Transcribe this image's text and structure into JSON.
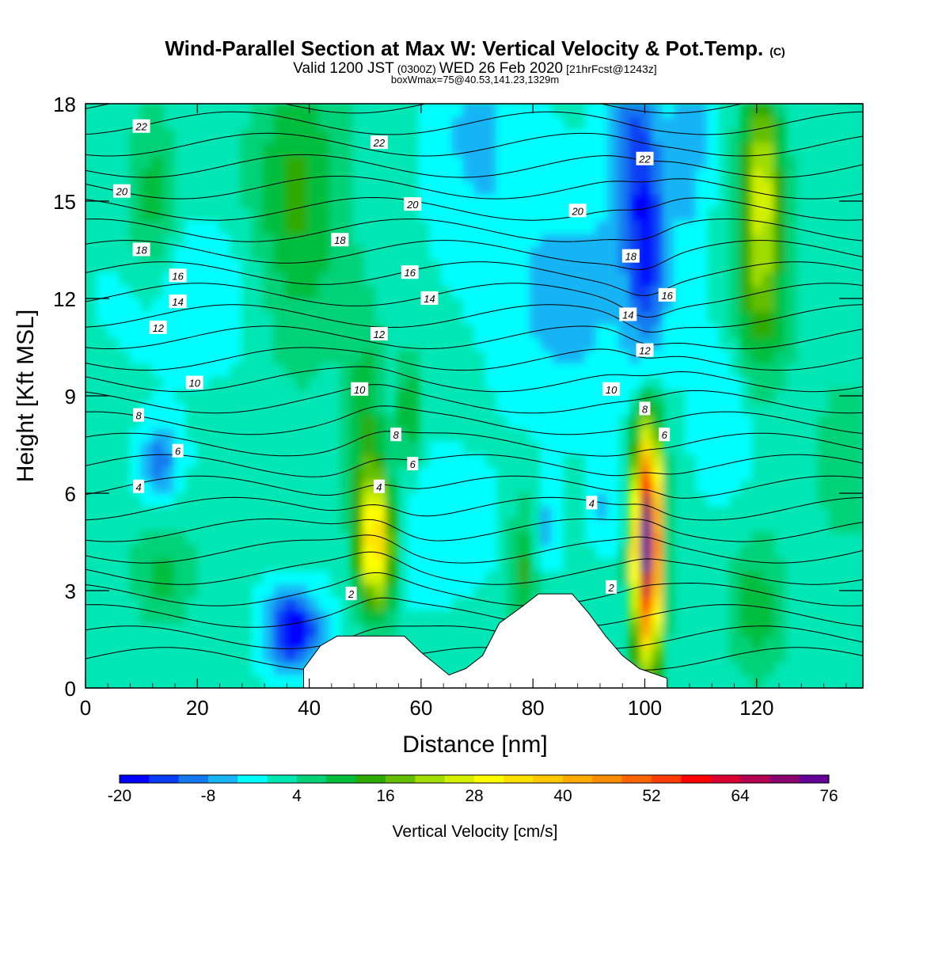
{
  "title": {
    "main": "Wind-Parallel Section at Max W: Vertical Velocity & Pot.Temp.",
    "copyright": "(C)",
    "valid_prefix": "Valid 1200 JST",
    "valid_utc": "(0300Z)",
    "valid_date": "WED 26 Feb 2020",
    "forecast": "[21hrFcst@1243z]",
    "boxwmax": "boxWmax=75@40.53,141.23,1329m"
  },
  "chart_data": {
    "type": "heatmap",
    "xlabel": "Distance [nm]",
    "ylabel": "Height [Kft MSL]",
    "xlim": [
      0,
      139
    ],
    "ylim": [
      0,
      18
    ],
    "x_ticks": [
      0,
      20,
      40,
      60,
      80,
      100,
      120
    ],
    "y_ticks": [
      0,
      3,
      6,
      9,
      12,
      15,
      18
    ],
    "colorbar": {
      "label": "Vertical Velocity [cm/s]",
      "min": -20,
      "max": 76,
      "step": 4,
      "tick_values": [
        -20,
        -8,
        4,
        16,
        28,
        40,
        52,
        64,
        76
      ],
      "colors": [
        "#0000ff",
        "#0a3cf5",
        "#1478f0",
        "#19b4f5",
        "#00ffff",
        "#00e6b4",
        "#00d278",
        "#00be3c",
        "#2daa00",
        "#64be00",
        "#a0dc00",
        "#d2f000",
        "#ffff00",
        "#ffe100",
        "#ffc800",
        "#ffaa00",
        "#ff8c00",
        "#ff6400",
        "#ff3c00",
        "#ff0000",
        "#dc0032",
        "#b40050",
        "#8c006e",
        "#640096"
      ]
    },
    "theta_contours": {
      "levels": [
        2,
        4,
        6,
        8,
        10,
        12,
        14,
        16,
        18,
        20,
        22
      ],
      "labels": [
        {
          "text": "22",
          "x": 10,
          "y": 17.3
        },
        {
          "text": "22",
          "x": 52.5,
          "y": 16.8
        },
        {
          "text": "22",
          "x": 100,
          "y": 16.3
        },
        {
          "text": "20",
          "x": 6.5,
          "y": 15.3
        },
        {
          "text": "20",
          "x": 58.5,
          "y": 14.9
        },
        {
          "text": "20",
          "x": 88,
          "y": 14.7
        },
        {
          "text": "18",
          "x": 10,
          "y": 13.5
        },
        {
          "text": "18",
          "x": 45.5,
          "y": 13.8
        },
        {
          "text": "18",
          "x": 97.5,
          "y": 13.3
        },
        {
          "text": "16",
          "x": 16.5,
          "y": 12.7
        },
        {
          "text": "16",
          "x": 58,
          "y": 12.8
        },
        {
          "text": "16",
          "x": 104,
          "y": 12.1
        },
        {
          "text": "14",
          "x": 16.5,
          "y": 11.9
        },
        {
          "text": "14",
          "x": 61.5,
          "y": 12.0
        },
        {
          "text": "14",
          "x": 97,
          "y": 11.5
        },
        {
          "text": "12",
          "x": 13,
          "y": 11.1
        },
        {
          "text": "12",
          "x": 52.5,
          "y": 10.9
        },
        {
          "text": "12",
          "x": 100,
          "y": 10.4
        },
        {
          "text": "10",
          "x": 19.5,
          "y": 9.4
        },
        {
          "text": "10",
          "x": 49,
          "y": 9.2
        },
        {
          "text": "10",
          "x": 94,
          "y": 9.2
        },
        {
          "text": "8",
          "x": 9.5,
          "y": 8.4
        },
        {
          "text": "8",
          "x": 55.5,
          "y": 7.8
        },
        {
          "text": "8",
          "x": 100,
          "y": 8.6
        },
        {
          "text": "6",
          "x": 16.5,
          "y": 7.3
        },
        {
          "text": "6",
          "x": 58.5,
          "y": 6.9
        },
        {
          "text": "6",
          "x": 103.5,
          "y": 7.8
        },
        {
          "text": "4",
          "x": 9.5,
          "y": 6.2
        },
        {
          "text": "4",
          "x": 52.5,
          "y": 6.2
        },
        {
          "text": "4",
          "x": 90.5,
          "y": 5.7
        },
        {
          "text": "2",
          "x": 47.5,
          "y": 2.9
        },
        {
          "text": "2",
          "x": 94,
          "y": 3.1
        }
      ]
    },
    "w_features": [
      {
        "kind": "updraft",
        "x": 52,
        "y": 4.5,
        "peak_w": 36
      },
      {
        "kind": "updraft",
        "x": 100.5,
        "y": 4.5,
        "peak_w": 75
      },
      {
        "kind": "downdraft",
        "x": 37.5,
        "y": 1.8,
        "peak_w": -20
      },
      {
        "kind": "downdraft",
        "x": 100.5,
        "y": 13.5,
        "peak_w": -16
      },
      {
        "kind": "downdraft",
        "x": 13.5,
        "y": 7.0,
        "peak_w": -10
      },
      {
        "kind": "updraft",
        "x": 121,
        "y": 15.5,
        "peak_w": 24
      }
    ],
    "terrain": [
      [
        39,
        0.6
      ],
      [
        42,
        1.3
      ],
      [
        45,
        1.6
      ],
      [
        57,
        1.6
      ],
      [
        60,
        1.1
      ],
      [
        65,
        0.4
      ],
      [
        68,
        0.6
      ],
      [
        71,
        1.0
      ],
      [
        74,
        2.0
      ],
      [
        78,
        2.5
      ],
      [
        81,
        2.9
      ],
      [
        87,
        2.9
      ],
      [
        90,
        2.3
      ],
      [
        93,
        1.6
      ],
      [
        96,
        1.0
      ],
      [
        99,
        0.6
      ],
      [
        104,
        0.3
      ]
    ]
  }
}
